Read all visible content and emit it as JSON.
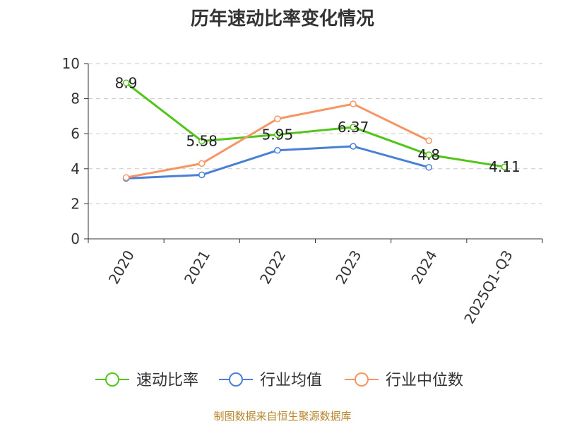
{
  "chart_data": {
    "type": "line",
    "title": "历年速动比率变化情况",
    "categories": [
      "2020",
      "2021",
      "2022",
      "2023",
      "2024",
      "2025Q1-Q3"
    ],
    "ylim": [
      0,
      10
    ],
    "yticks": [
      0,
      2,
      4,
      6,
      8,
      10
    ],
    "grid": true,
    "legend_position": "bottom",
    "series": [
      {
        "name": "速动比率",
        "color": "#52c41a",
        "values": [
          8.9,
          5.58,
          5.95,
          6.37,
          4.8,
          4.11
        ],
        "labels": [
          "8.9",
          "5.58",
          "5.95",
          "6.37",
          "4.8",
          "4.11"
        ]
      },
      {
        "name": "行业均值",
        "color": "#4a7fd6",
        "values": [
          3.45,
          3.65,
          5.05,
          5.28,
          4.08,
          null
        ]
      },
      {
        "name": "行业中位数",
        "color": "#f59563",
        "values": [
          3.5,
          4.3,
          6.85,
          7.7,
          5.6,
          null
        ]
      }
    ]
  },
  "source": "制图数据来自恒生聚源数据库"
}
